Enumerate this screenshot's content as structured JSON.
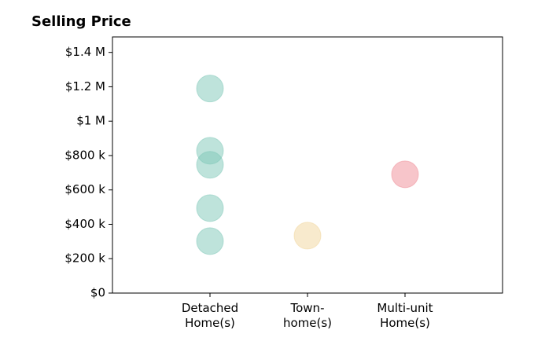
{
  "chart_data": {
    "type": "strip",
    "title": "Selling Price",
    "categories": [
      "Detached\nHome(s)",
      "Town-\nhome(s)",
      "Multi-unit\nHome(s)"
    ],
    "values": [
      [
        1190000,
        828000,
        746000,
        494000,
        302000
      ],
      [
        334000
      ],
      [
        691000
      ]
    ],
    "colors": [
      "#7ec8b8",
      "#f2d59c",
      "#f08c96"
    ],
    "alpha": 0.5,
    "xlim": [
      0,
      4
    ],
    "ylim": [
      0,
      1490000
    ],
    "yticks": [
      {
        "value": 0,
        "label": "$0"
      },
      {
        "value": 200000,
        "label": "$200 k"
      },
      {
        "value": 400000,
        "label": "$400 k"
      },
      {
        "value": 600000,
        "label": "$600 k"
      },
      {
        "value": 800000,
        "label": "$800 k"
      },
      {
        "value": 1000000,
        "label": "$1 M"
      },
      {
        "value": 1200000,
        "label": "$1.2 M"
      },
      {
        "value": 1400000,
        "label": "$1.4 M"
      }
    ]
  }
}
